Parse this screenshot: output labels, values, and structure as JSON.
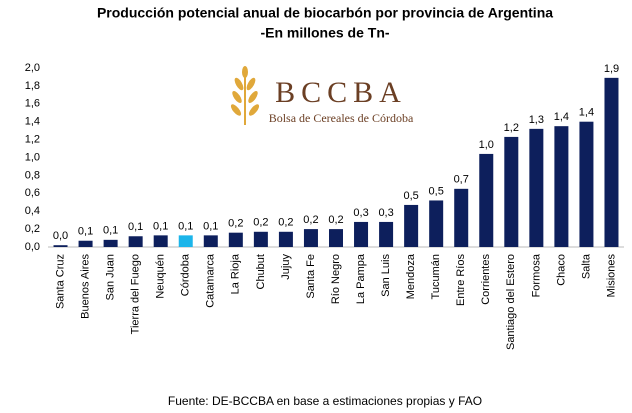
{
  "chart_data": {
    "type": "bar",
    "title": "Producción potencial anual de biocarbón por provincia de Argentina",
    "subtitle": "-En millones de Tn-",
    "source": "Fuente: DE-BCCBA en base a estimaciones propias y FAO",
    "logo": {
      "name": "BCCBA",
      "tagline": "Bolsa de Cereales de Córdoba"
    },
    "categories": [
      "Santa Cruz",
      "Buenos Aires",
      "San Juan",
      "Tierra del Fuego",
      "Neuquén",
      "Córdoba",
      "Catamarca",
      "La Rioja",
      "Chubut",
      "Jujuy",
      "Santa Fe",
      "Río Negro",
      "La Pampa",
      "San Luis",
      "Mendoza",
      "Tucumán",
      "Entre Ríos",
      "Corrientes",
      "Santiago del Estero",
      "Formosa",
      "Chaco",
      "Salta",
      "Misiones"
    ],
    "values": [
      0.02,
      0.07,
      0.08,
      0.12,
      0.13,
      0.13,
      0.13,
      0.16,
      0.17,
      0.17,
      0.2,
      0.2,
      0.28,
      0.28,
      0.47,
      0.52,
      0.65,
      1.04,
      1.23,
      1.32,
      1.35,
      1.4,
      1.89
    ],
    "value_labels": [
      "0,0",
      "0,1",
      "0,1",
      "0,1",
      "0,1",
      "0,1",
      "0,1",
      "0,2",
      "0,2",
      "0,2",
      "0,2",
      "0,2",
      "0,3",
      "0,3",
      "0,5",
      "0,5",
      "0,7",
      "1,0",
      "1,2",
      "1,3",
      "1,4",
      "1,4",
      "1,9"
    ],
    "colors": [
      "#0d1f5c",
      "#0d1f5c",
      "#0d1f5c",
      "#0d1f5c",
      "#0d1f5c",
      "#1cb5ea",
      "#0d1f5c",
      "#0d1f5c",
      "#0d1f5c",
      "#0d1f5c",
      "#0d1f5c",
      "#0d1f5c",
      "#0d1f5c",
      "#0d1f5c",
      "#0d1f5c",
      "#0d1f5c",
      "#0d1f5c",
      "#0d1f5c",
      "#0d1f5c",
      "#0d1f5c",
      "#0d1f5c",
      "#0d1f5c",
      "#0d1f5c"
    ],
    "ylim": [
      0,
      2
    ],
    "yticks": [
      {
        "value": 0,
        "label": "0,0"
      },
      {
        "value": 0.2,
        "label": "0,2"
      },
      {
        "value": 0.4,
        "label": "0,4"
      },
      {
        "value": 0.6,
        "label": "0,6"
      },
      {
        "value": 0.8,
        "label": "0,8"
      },
      {
        "value": 1,
        "label": "1,0"
      },
      {
        "value": 1.2,
        "label": "1,2"
      },
      {
        "value": 1.4,
        "label": "1,4"
      },
      {
        "value": 1.6,
        "label": "1,6"
      },
      {
        "value": 1.8,
        "label": "1,8"
      },
      {
        "value": 2,
        "label": "2,0"
      }
    ],
    "grid": false
  }
}
